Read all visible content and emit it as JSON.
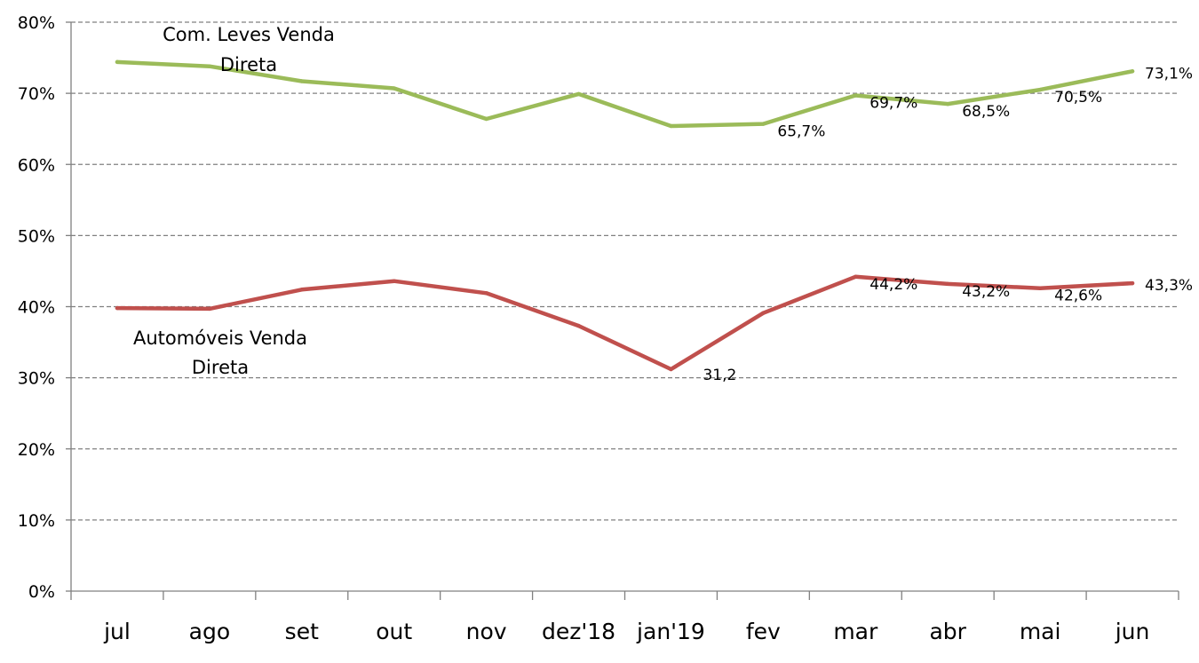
{
  "chart_data": {
    "type": "line",
    "title": "",
    "xlabel": "",
    "ylabel": "",
    "ylim": [
      0,
      80
    ],
    "yticks": [
      "0%",
      "10%",
      "20%",
      "30%",
      "40%",
      "50%",
      "60%",
      "70%",
      "80%"
    ],
    "grid": true,
    "categories": [
      "jul",
      "ago",
      "set",
      "out",
      "nov",
      "dez'18",
      "jan'19",
      "fev",
      "mar",
      "abr",
      "mai",
      "jun"
    ],
    "series": [
      {
        "name": "Com. Leves Venda Direta",
        "name_lines": [
          "Com. Leves Venda",
          "Direta"
        ],
        "color": "#9BBB59",
        "values": [
          74.4,
          73.8,
          71.7,
          70.7,
          66.4,
          69.9,
          65.4,
          65.7,
          69.7,
          68.5,
          70.5,
          73.1
        ],
        "data_labels": [
          null,
          null,
          null,
          null,
          null,
          null,
          null,
          "65,7%",
          "69,7%",
          "68,5%",
          "70,5%",
          "73,1%"
        ]
      },
      {
        "name": "Automóveis Venda Direta",
        "name_lines": [
          "Automóveis Venda",
          "Direta"
        ],
        "color": "#C0504D",
        "values": [
          39.8,
          39.7,
          42.4,
          43.6,
          41.9,
          37.3,
          31.2,
          39.1,
          44.2,
          43.2,
          42.6,
          43.3
        ],
        "data_labels": [
          null,
          null,
          null,
          null,
          null,
          null,
          "31,2",
          null,
          "44,2%",
          "43,2%",
          "42,6%",
          "43,3%"
        ]
      }
    ]
  }
}
